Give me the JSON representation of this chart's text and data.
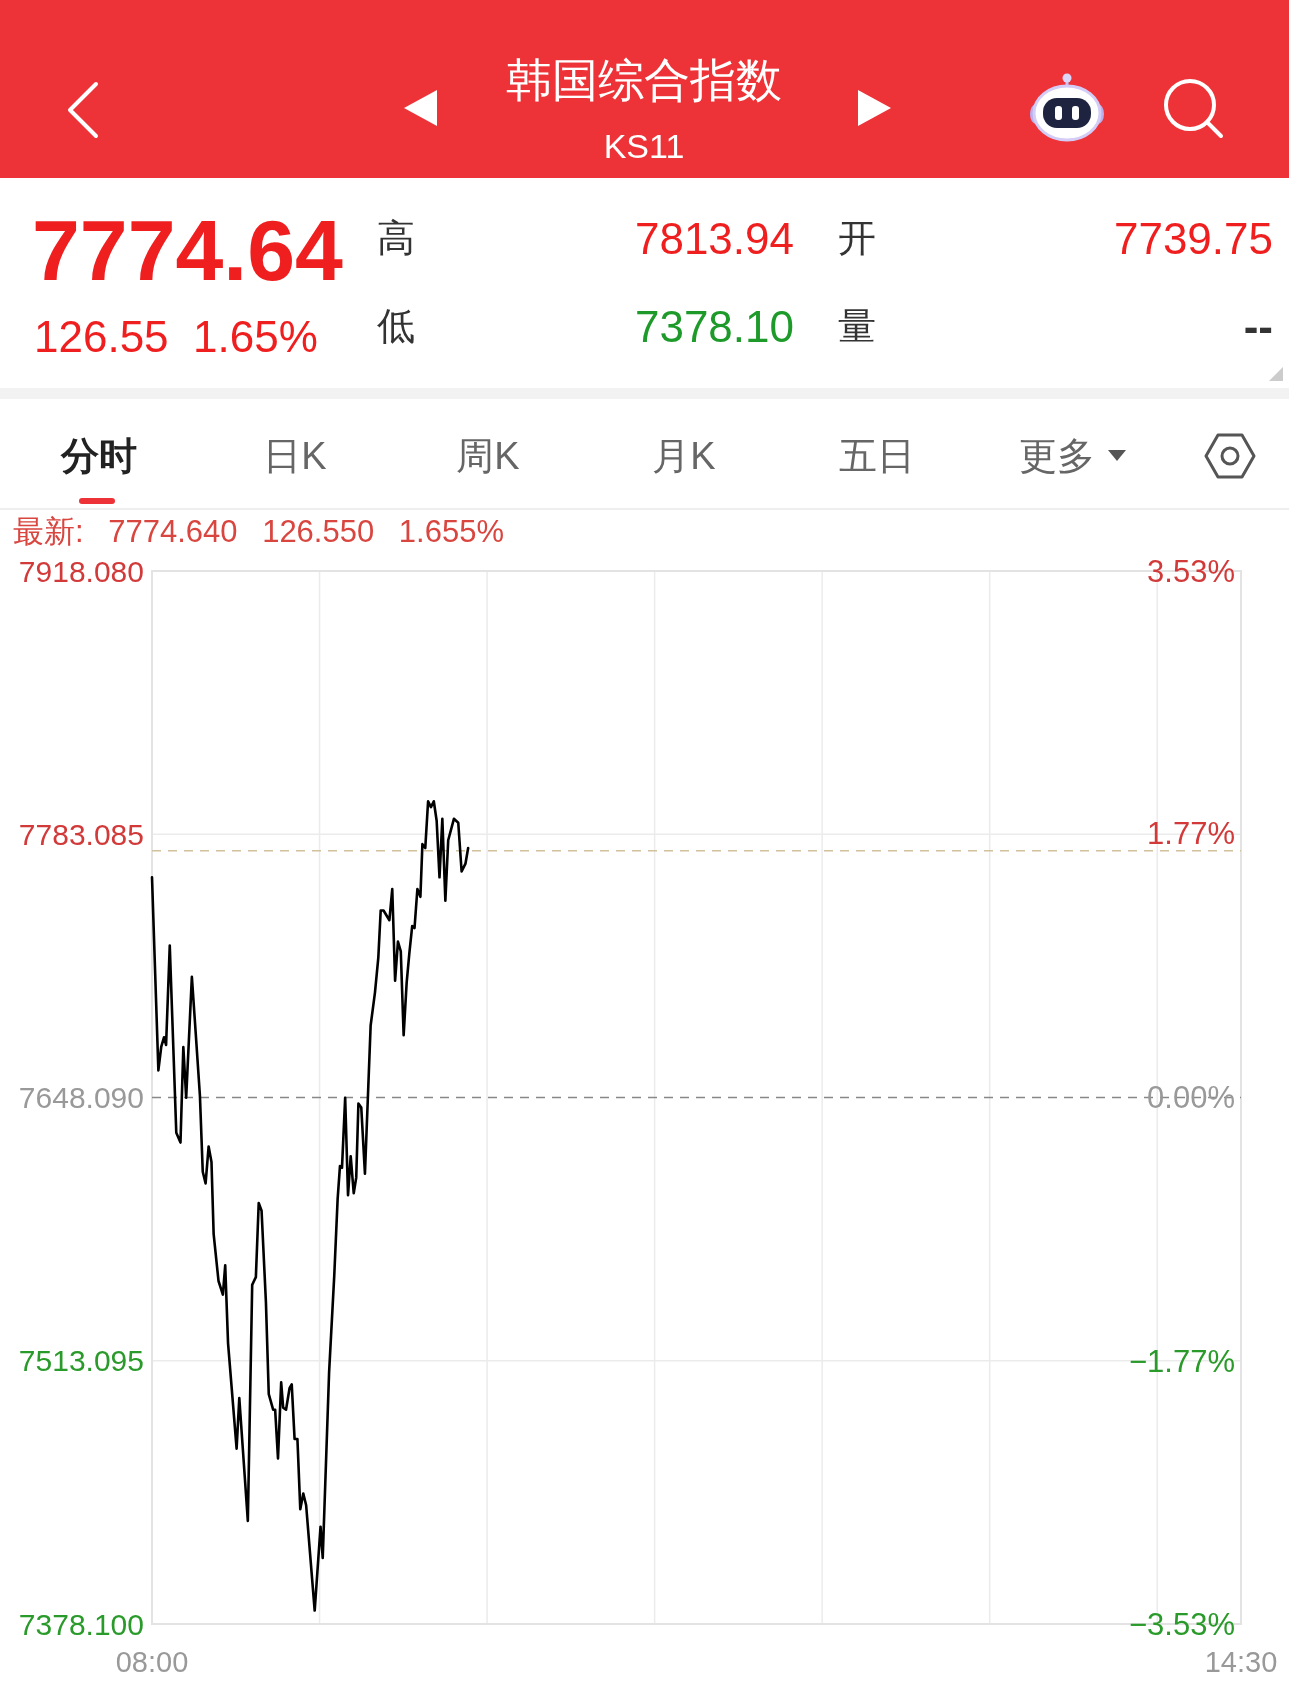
{
  "chart_data": {
    "type": "line",
    "title": "韩国综合指数",
    "subtitle": "KS11",
    "annotations": [
      "7774.64",
      "126.55",
      "1.65%",
      "高",
      "7813.94",
      "低",
      "7378.10",
      "开",
      "7739.75",
      "量",
      "--",
      "分时",
      "日K",
      "周K",
      "月K",
      "五日",
      "更多",
      "最新: 7774.640 126.550 1.655%"
    ],
    "x": [
      8.0,
      8.038,
      8.055,
      8.072,
      8.084,
      8.106,
      8.145,
      8.17,
      8.187,
      8.204,
      8.238,
      8.261,
      8.286,
      8.303,
      8.32,
      8.338,
      8.355,
      8.368,
      8.397,
      8.423,
      8.437,
      8.454,
      8.505,
      8.521,
      8.572,
      8.598,
      8.62,
      8.637,
      8.654,
      8.68,
      8.697,
      8.723,
      8.735,
      8.752,
      8.771,
      8.783,
      8.8,
      8.821,
      8.834,
      8.851,
      8.868,
      8.885,
      8.903,
      8.92,
      8.971,
      9.006,
      9.019,
      9.057,
      9.088,
      9.108,
      9.122,
      9.134,
      9.153,
      9.17,
      9.186,
      9.204,
      9.219,
      9.232,
      9.249,
      9.271,
      9.305,
      9.331,
      9.351,
      9.365,
      9.382,
      9.417,
      9.434,
      9.451,
      9.468,
      9.485,
      9.502,
      9.52,
      9.536,
      9.553,
      9.567,
      9.584,
      9.602,
      9.614,
      9.631,
      9.648,
      9.665,
      9.682,
      9.699,
      9.716,
      9.733,
      9.751,
      9.768,
      9.802,
      9.828,
      9.848,
      9.871,
      9.887
    ],
    "series": [
      {
        "color": "#000000",
        "values": [
          7761,
          7662,
          7674,
          7679,
          7675,
          7726,
          7630,
          7625,
          7674,
          7648,
          7710,
          7681,
          7649,
          7610,
          7604,
          7623,
          7615,
          7578,
          7554,
          7547,
          7562,
          7522,
          7468,
          7494,
          7431,
          7552,
          7556,
          7594,
          7590,
          7543,
          7496,
          7488,
          7488,
          7463,
          7502,
          7489,
          7488,
          7499,
          7501,
          7473,
          7473,
          7437,
          7445,
          7439,
          7385,
          7428,
          7412,
          7507,
          7557,
          7596,
          7613,
          7612,
          7648,
          7598,
          7618,
          7599,
          7607,
          7645,
          7643,
          7609,
          7685,
          7702,
          7720,
          7744,
          7744,
          7739,
          7755,
          7708,
          7728,
          7723,
          7680,
          7707,
          7722,
          7736,
          7735,
          7755,
          7751,
          7778,
          7776,
          7800,
          7797,
          7800,
          7790,
          7761,
          7791,
          7749,
          7780,
          7791,
          7789,
          7764,
          7768,
          7776
        ]
      }
    ],
    "xlim": [
      8,
      14.5
    ],
    "xticks": [
      {
        "value": 8,
        "label": "08:00"
      },
      {
        "value": 9,
        "label": null
      },
      {
        "value": 10,
        "label": null
      },
      {
        "value": 11,
        "label": null
      },
      {
        "value": 12,
        "label": null
      },
      {
        "value": 13,
        "label": null
      },
      {
        "value": 14,
        "label": null
      },
      {
        "value": 14.5,
        "label": "14:30"
      }
    ],
    "ylim": [
      7378.1,
      7918.08
    ],
    "yticks": [
      {
        "value": 7918.08,
        "label": "7918.080"
      },
      {
        "value": 7783.085,
        "label": "7783.085"
      },
      {
        "value": 7648.09,
        "label": "7648.090"
      },
      {
        "value": 7513.095,
        "label": "7513.095"
      },
      {
        "value": 7378.1,
        "label": "7378.100"
      }
    ],
    "y2lim": [
      -3.53,
      3.53
    ],
    "y2ticks": [
      {
        "value": 3.53,
        "label": "3.53%"
      },
      {
        "value": 1.77,
        "label": "1.77%"
      },
      {
        "value": 0,
        "label": "0.00%"
      },
      {
        "value": -1.77,
        "label": "−1.77%"
      },
      {
        "value": -3.53,
        "label": "−3.53%"
      }
    ],
    "ref_lines": [
      {
        "axis": "y",
        "value": 7648.09,
        "line_style": "dashed",
        "color": "#888888"
      },
      {
        "axis": "y",
        "value": 7774.64,
        "line_style": "dashed",
        "color": "#d2c29c"
      }
    ],
    "grid": true
  }
}
